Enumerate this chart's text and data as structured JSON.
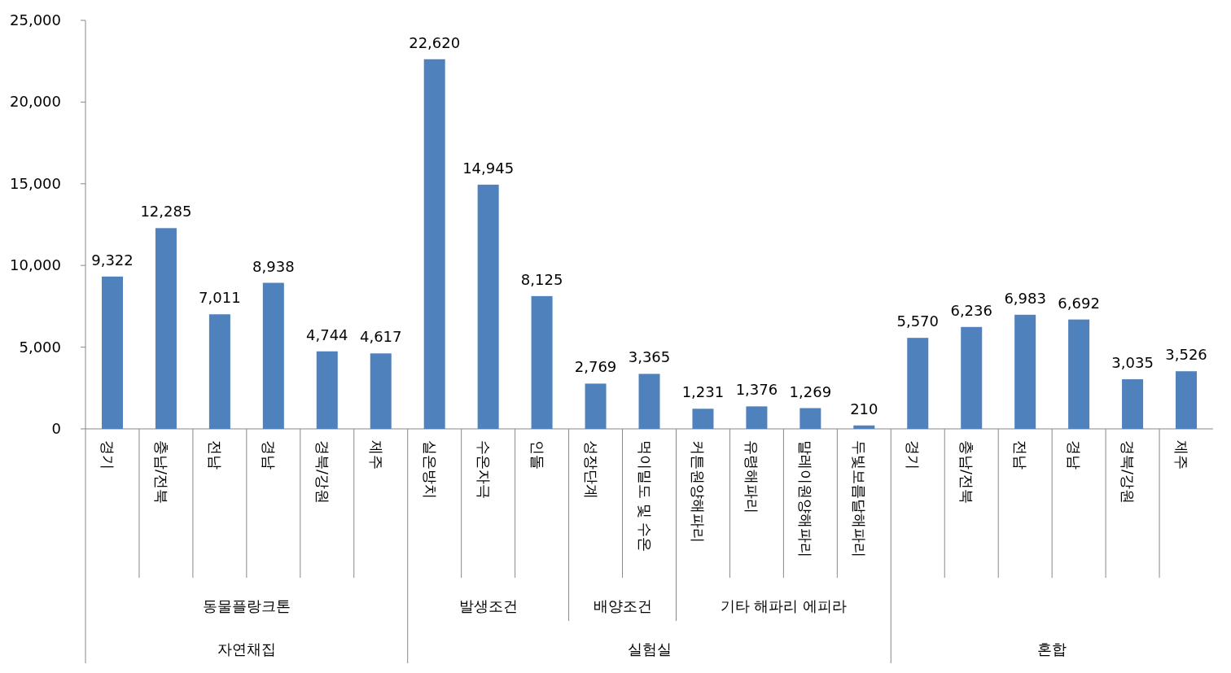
{
  "chart_data": {
    "type": "bar",
    "categories": [
      "경기",
      "충남/전북",
      "전남",
      "경남",
      "경북/강원",
      "제주",
      "실온방치",
      "수온자극",
      "인돌",
      "성장단계",
      "먹이밀도 및 수온",
      "커튼원양해파리",
      "유령해파리",
      "말레이원양해파리",
      "두빛보름달해파리",
      "경기",
      "충남/전북",
      "전남",
      "경남",
      "경북/강원",
      "제주"
    ],
    "values": [
      9322,
      12285,
      7011,
      8938,
      4744,
      4617,
      22620,
      14945,
      8125,
      2769,
      3365,
      1231,
      1376,
      1269,
      210,
      5570,
      6236,
      6983,
      6692,
      3035,
      3526
    ],
    "color": "#4f81bd",
    "value_labels": [
      "9,322",
      "12,285",
      "7,011",
      "8,938",
      "4,744",
      "4,617",
      "22,620",
      "14,945",
      "8,125",
      "2,769",
      "3,365",
      "1,231",
      "1,376",
      "1,269",
      "210",
      "5,570",
      "6,236",
      "6,983",
      "6,692",
      "3,035",
      "3,526"
    ],
    "ylim": [
      0,
      25000
    ],
    "yticks": [
      {
        "value": 0,
        "label": "0"
      },
      {
        "value": 5000,
        "label": "5,000"
      },
      {
        "value": 10000,
        "label": "10,000"
      },
      {
        "value": 15000,
        "label": "15,000"
      },
      {
        "value": 20000,
        "label": "20,000"
      },
      {
        "value": 25000,
        "label": "25,000"
      }
    ],
    "annotations": [
      "동물플랑크톤",
      "발생조건",
      "배양조건",
      "기타 해파리 에피라",
      "자연채집",
      "실험실",
      "혼합"
    ]
  }
}
